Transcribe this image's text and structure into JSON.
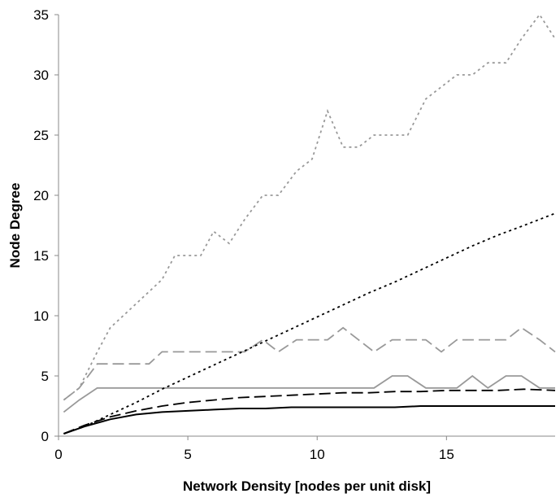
{
  "chart_data": {
    "type": "line",
    "title": "",
    "xlabel": "Network Density [nodes per unit disk]",
    "ylabel": "Node Degree",
    "xlim": [
      0,
      19.2
    ],
    "ylim": [
      0,
      35
    ],
    "xticks": [
      0,
      5,
      10,
      15
    ],
    "yticks": [
      0,
      5,
      10,
      15,
      20,
      25,
      30,
      35
    ],
    "grid": false,
    "legend": "none",
    "series": [
      {
        "color": "#999999",
        "dash": "dotted",
        "x": [
          0.2,
          0.8,
          1.5,
          2.0,
          2.5,
          3.0,
          3.5,
          4.0,
          4.5,
          5.0,
          5.5,
          6.0,
          6.6,
          7.2,
          7.9,
          8.5,
          9.2,
          9.8,
          10.4,
          11.0,
          11.6,
          12.2,
          12.9,
          13.5,
          14.2,
          14.8,
          15.4,
          16.0,
          16.6,
          17.3,
          17.9,
          18.6,
          19.2
        ],
        "y": [
          3.0,
          4.0,
          7.0,
          9.0,
          10.0,
          11.0,
          12.0,
          13.0,
          15.0,
          15.0,
          15.0,
          17.0,
          16.0,
          18.0,
          20.0,
          20.0,
          22.0,
          23.0,
          27.0,
          24.0,
          24.0,
          25.0,
          25.0,
          25.0,
          28.0,
          29.0,
          30.0,
          30.0,
          31.0,
          31.0,
          33.0,
          35.0,
          33.0
        ]
      },
      {
        "color": "#999999",
        "dash": "dashed",
        "x": [
          0.2,
          0.8,
          1.5,
          2.0,
          2.5,
          3.0,
          3.5,
          4.0,
          4.5,
          5.0,
          5.5,
          6.0,
          6.6,
          7.2,
          7.9,
          8.5,
          9.2,
          9.8,
          10.4,
          11.0,
          11.6,
          12.2,
          12.9,
          13.5,
          14.2,
          14.8,
          15.4,
          16.0,
          16.6,
          17.3,
          17.9,
          18.6,
          19.2
        ],
        "y": [
          3.0,
          4.0,
          6.0,
          6.0,
          6.0,
          6.0,
          6.0,
          7.0,
          7.0,
          7.0,
          7.0,
          7.0,
          7.0,
          7.0,
          8.0,
          7.0,
          8.0,
          8.0,
          8.0,
          9.0,
          8.0,
          7.0,
          8.0,
          8.0,
          8.0,
          7.0,
          8.0,
          8.0,
          8.0,
          8.0,
          9.0,
          8.0,
          7.0
        ]
      },
      {
        "color": "#999999",
        "dash": "solid",
        "x": [
          0.2,
          0.8,
          1.5,
          2.0,
          2.5,
          3.0,
          3.5,
          4.0,
          4.5,
          5.0,
          5.5,
          6.0,
          6.6,
          7.2,
          7.9,
          8.5,
          9.2,
          9.8,
          10.4,
          11.0,
          11.6,
          12.2,
          12.9,
          13.5,
          14.2,
          14.8,
          15.4,
          16.0,
          16.6,
          17.3,
          17.9,
          18.6,
          19.2
        ],
        "y": [
          2.0,
          3.0,
          4.0,
          4.0,
          4.0,
          4.0,
          4.0,
          4.0,
          4.0,
          4.0,
          4.0,
          4.0,
          4.0,
          4.0,
          4.0,
          4.0,
          4.0,
          4.0,
          4.0,
          4.0,
          4.0,
          4.0,
          5.0,
          5.0,
          4.0,
          4.0,
          4.0,
          5.0,
          4.0,
          5.0,
          5.0,
          4.0,
          4.0
        ]
      },
      {
        "color": "#000000",
        "dash": "dotted",
        "x": [
          0.2,
          1.0,
          2.0,
          3.0,
          4.0,
          5.0,
          6.0,
          7.0,
          8.0,
          9.0,
          10.0,
          11.0,
          12.0,
          13.0,
          14.0,
          15.0,
          16.0,
          17.0,
          18.0,
          19.2
        ],
        "y": [
          0.2,
          0.8,
          1.8,
          2.8,
          3.9,
          4.9,
          5.9,
          6.9,
          7.9,
          8.9,
          9.9,
          10.9,
          11.9,
          12.8,
          13.8,
          14.8,
          15.8,
          16.7,
          17.5,
          18.5
        ]
      },
      {
        "color": "#000000",
        "dash": "dashed",
        "x": [
          0.2,
          1.0,
          2.0,
          3.0,
          4.0,
          5.0,
          6.0,
          7.0,
          8.0,
          9.0,
          10.0,
          11.0,
          12.0,
          13.0,
          14.0,
          15.0,
          16.0,
          17.0,
          18.0,
          19.2
        ],
        "y": [
          0.2,
          0.9,
          1.6,
          2.1,
          2.5,
          2.8,
          3.0,
          3.2,
          3.3,
          3.4,
          3.5,
          3.6,
          3.6,
          3.7,
          3.7,
          3.8,
          3.8,
          3.8,
          3.9,
          3.8
        ]
      },
      {
        "color": "#000000",
        "dash": "solid",
        "x": [
          0.2,
          1.0,
          2.0,
          3.0,
          4.0,
          5.0,
          6.0,
          7.0,
          8.0,
          9.0,
          10.0,
          11.0,
          12.0,
          13.0,
          14.0,
          15.0,
          16.0,
          17.0,
          18.0,
          19.2
        ],
        "y": [
          0.2,
          0.8,
          1.4,
          1.8,
          2.0,
          2.1,
          2.2,
          2.3,
          2.3,
          2.4,
          2.4,
          2.4,
          2.4,
          2.4,
          2.5,
          2.5,
          2.5,
          2.5,
          2.5,
          2.5
        ]
      }
    ]
  }
}
